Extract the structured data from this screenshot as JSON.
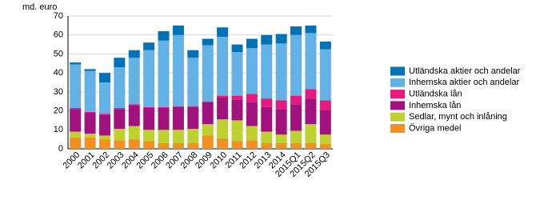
{
  "chart_data": {
    "type": "stacked_bar",
    "y_unit_label": "md. euro",
    "categories": [
      "2000",
      "2001",
      "2002",
      "2003",
      "2004",
      "2005",
      "2006",
      "2007",
      "2008",
      "2009",
      "2010",
      "2011",
      "2012",
      "2013",
      "2014",
      "2015Q1",
      "2015Q2",
      "2015Q3"
    ],
    "series": [
      {
        "name": "Övriga medel",
        "color": "#f39021",
        "values": [
          6,
          6,
          5,
          4.5,
          5,
          4,
          3,
          3,
          3,
          7,
          5.5,
          4,
          4.5,
          3,
          3,
          3,
          3,
          2.5
        ]
      },
      {
        "name": "Sedlar, mynt och inlåning",
        "color": "#bed22f",
        "values": [
          3,
          2,
          2,
          6,
          7,
          6,
          7,
          7,
          7.5,
          6,
          10,
          11,
          7.5,
          6,
          4.5,
          6.5,
          10,
          5
        ]
      },
      {
        "name": "Inhemska lån",
        "color": "#a2127f",
        "values": [
          12,
          11,
          11,
          10.5,
          11,
          11.5,
          11.5,
          12,
          11.5,
          11.5,
          11.5,
          11,
          12.5,
          13,
          13.5,
          14,
          13.5,
          13
        ]
      },
      {
        "name": "Utländska lån",
        "color": "#e5197e",
        "values": [
          0.5,
          0.5,
          0.5,
          0.5,
          0.5,
          0.5,
          0.5,
          0.5,
          0.5,
          0.5,
          1,
          2,
          4.5,
          4.5,
          4.5,
          4.5,
          5,
          5
        ]
      },
      {
        "name": "Inhemska aktier och andelar",
        "color": "#63b1e5",
        "values": [
          23,
          21.5,
          16.5,
          21.5,
          24.5,
          30,
          35,
          37.5,
          25.5,
          29.5,
          31,
          23,
          24,
          28.5,
          30,
          32,
          29.5,
          27
        ]
      },
      {
        "name": "Utländska aktier och andelar",
        "color": "#0072b5",
        "values": [
          1,
          1,
          5,
          5,
          4,
          4,
          5,
          5,
          4,
          3.5,
          5,
          4,
          5,
          5,
          5,
          4.5,
          4,
          4
        ]
      }
    ],
    "ylim": [
      0,
      70
    ],
    "yticks": [
      0,
      10,
      20,
      30,
      40,
      50,
      60,
      70
    ],
    "grid": true
  }
}
